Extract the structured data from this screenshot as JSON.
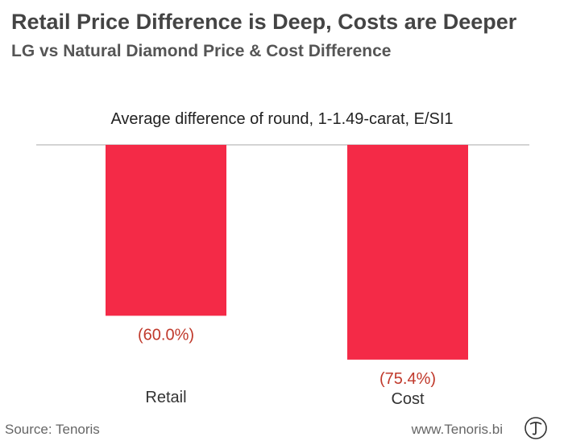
{
  "header": {
    "title": "Retail Price Difference is Deep, Costs are Deeper",
    "subtitle": "LG vs Natural Diamond Price & Cost Difference"
  },
  "footer": {
    "source": "Source: Tenoris",
    "website": "www.Tenoris.bi"
  },
  "chart_data": {
    "type": "bar",
    "title": "Average difference of round, 1-1.49-carat, E/SI1",
    "categories": [
      "Retail",
      "Cost"
    ],
    "values": [
      -60.0,
      -75.4
    ],
    "value_labels": [
      "(60.0%)",
      "(75.4%)"
    ],
    "xlabel": "",
    "ylabel": "",
    "ylim": [
      -80,
      0
    ],
    "grid": false,
    "legend": "none",
    "bar_color": "#f42a47",
    "label_color": "#c0392b",
    "axis_color": "#bbbbbb"
  }
}
